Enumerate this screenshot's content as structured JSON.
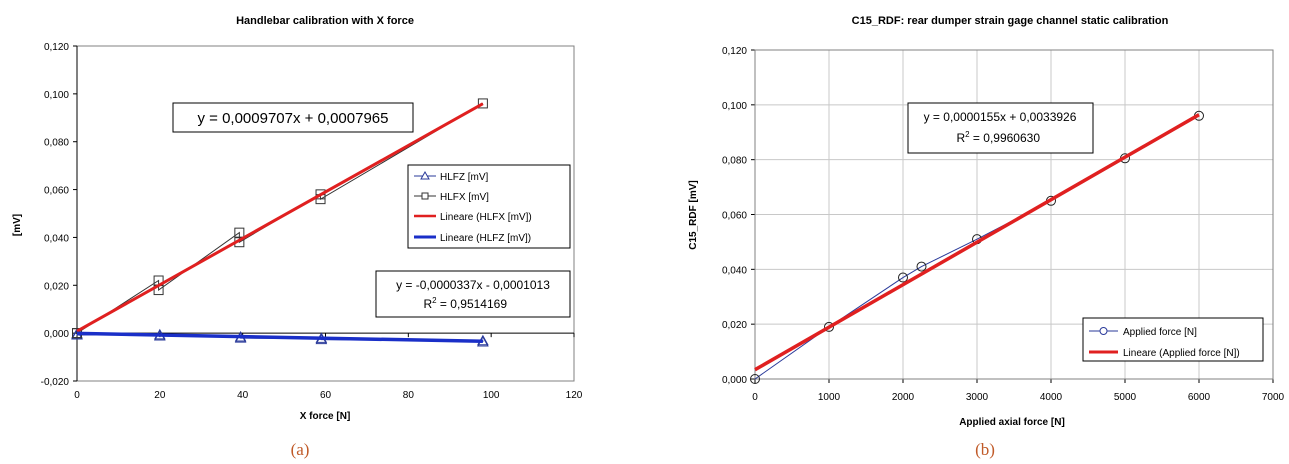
{
  "chart_data": [
    {
      "type": "line",
      "title": "Handlebar calibration with X force",
      "xlabel": "X force [N]",
      "ylabel": "[mV]",
      "xlim": [
        0,
        120
      ],
      "ylim": [
        -0.02,
        0.12
      ],
      "x_ticks": [
        0,
        20,
        40,
        60,
        80,
        100,
        120
      ],
      "y_ticks": [
        -0.02,
        0,
        0.02,
        0.04,
        0.06,
        0.08,
        0.1,
        0.12
      ],
      "x_tick_labels": [
        "0",
        "20",
        "40",
        "60",
        "80",
        "100",
        "120"
      ],
      "y_tick_labels": [
        "-0,020",
        "0,000",
        "0,020",
        "0,040",
        "0,060",
        "0,080",
        "0,100",
        "0,120"
      ],
      "grid": false,
      "legend_position": "right",
      "series": [
        {
          "name": "HLFZ [mV]",
          "color": "#2a3a9a",
          "marker": "triangle",
          "x": [
            0,
            0,
            20,
            20,
            39.5,
            39.5,
            59,
            59,
            98,
            98
          ],
          "y": [
            -0.0003,
            -0.0008,
            -0.0007,
            -0.0012,
            -0.0016,
            -0.0021,
            -0.0022,
            -0.0027,
            -0.0032,
            -0.0037
          ]
        },
        {
          "name": "HLFX [mV]",
          "color": "#333333",
          "marker": "square",
          "x": [
            0,
            0,
            19.7,
            19.7,
            39.2,
            39.2,
            58.8,
            58.8,
            98
          ],
          "y": [
            0,
            0,
            0.022,
            0.018,
            0.042,
            0.038,
            0.058,
            0.056,
            0.096
          ]
        },
        {
          "name": "Lineare (HLFX [mV])",
          "color": "#e02020",
          "fit": true,
          "x": [
            0,
            98
          ],
          "y": [
            0.0007965,
            0.0959
          ]
        },
        {
          "name": "Lineare (HLFZ [mV])",
          "color": "#1a2fc8",
          "fit": true,
          "x": [
            0,
            98
          ],
          "y": [
            -0.0001013,
            -0.0034
          ]
        }
      ],
      "annotations": {
        "eq_x": "y = 0,0009707x + 0,0007965",
        "eq_z": "y = -0,0000337x - 0,0001013",
        "r2_z_label": "R",
        "r2_z_value": " = 0,9514169"
      },
      "caption": "(a)"
    },
    {
      "type": "line",
      "title": "C15_RDF: rear dumper strain gage channel static calibration",
      "xlabel": "Applied axial force [N]",
      "ylabel": "C15_RDF [mV]",
      "xlim": [
        0,
        7000
      ],
      "ylim": [
        0,
        0.12
      ],
      "x_ticks": [
        0,
        1000,
        2000,
        3000,
        4000,
        5000,
        6000,
        7000
      ],
      "y_ticks": [
        0,
        0.02,
        0.04,
        0.06,
        0.08,
        0.1,
        0.12
      ],
      "x_tick_labels": [
        "0",
        "1000",
        "2000",
        "3000",
        "4000",
        "5000",
        "6000",
        "7000"
      ],
      "y_tick_labels": [
        "0,000",
        "0,020",
        "0,040",
        "0,060",
        "0,080",
        "0,100",
        "0,120"
      ],
      "grid": true,
      "legend_position": "bottom-right",
      "series": [
        {
          "name": "Applied force [N]",
          "color": "#2a3a9a",
          "marker": "circle",
          "x": [
            0,
            1000,
            2000,
            2250,
            3000,
            4000,
            5000,
            6000
          ],
          "y": [
            0,
            0.019,
            0.037,
            0.041,
            0.051,
            0.065,
            0.0805,
            0.096
          ]
        },
        {
          "name": "Lineare (Applied force [N])",
          "color": "#e02020",
          "fit": true,
          "x": [
            0,
            6000
          ],
          "y": [
            0.0033926,
            0.0964
          ]
        }
      ],
      "annotations": {
        "eq": "y = 0,0000155x + 0,0033926",
        "r2_label": "R",
        "r2_value": " = 0,9960630"
      },
      "caption": "(b)"
    }
  ]
}
